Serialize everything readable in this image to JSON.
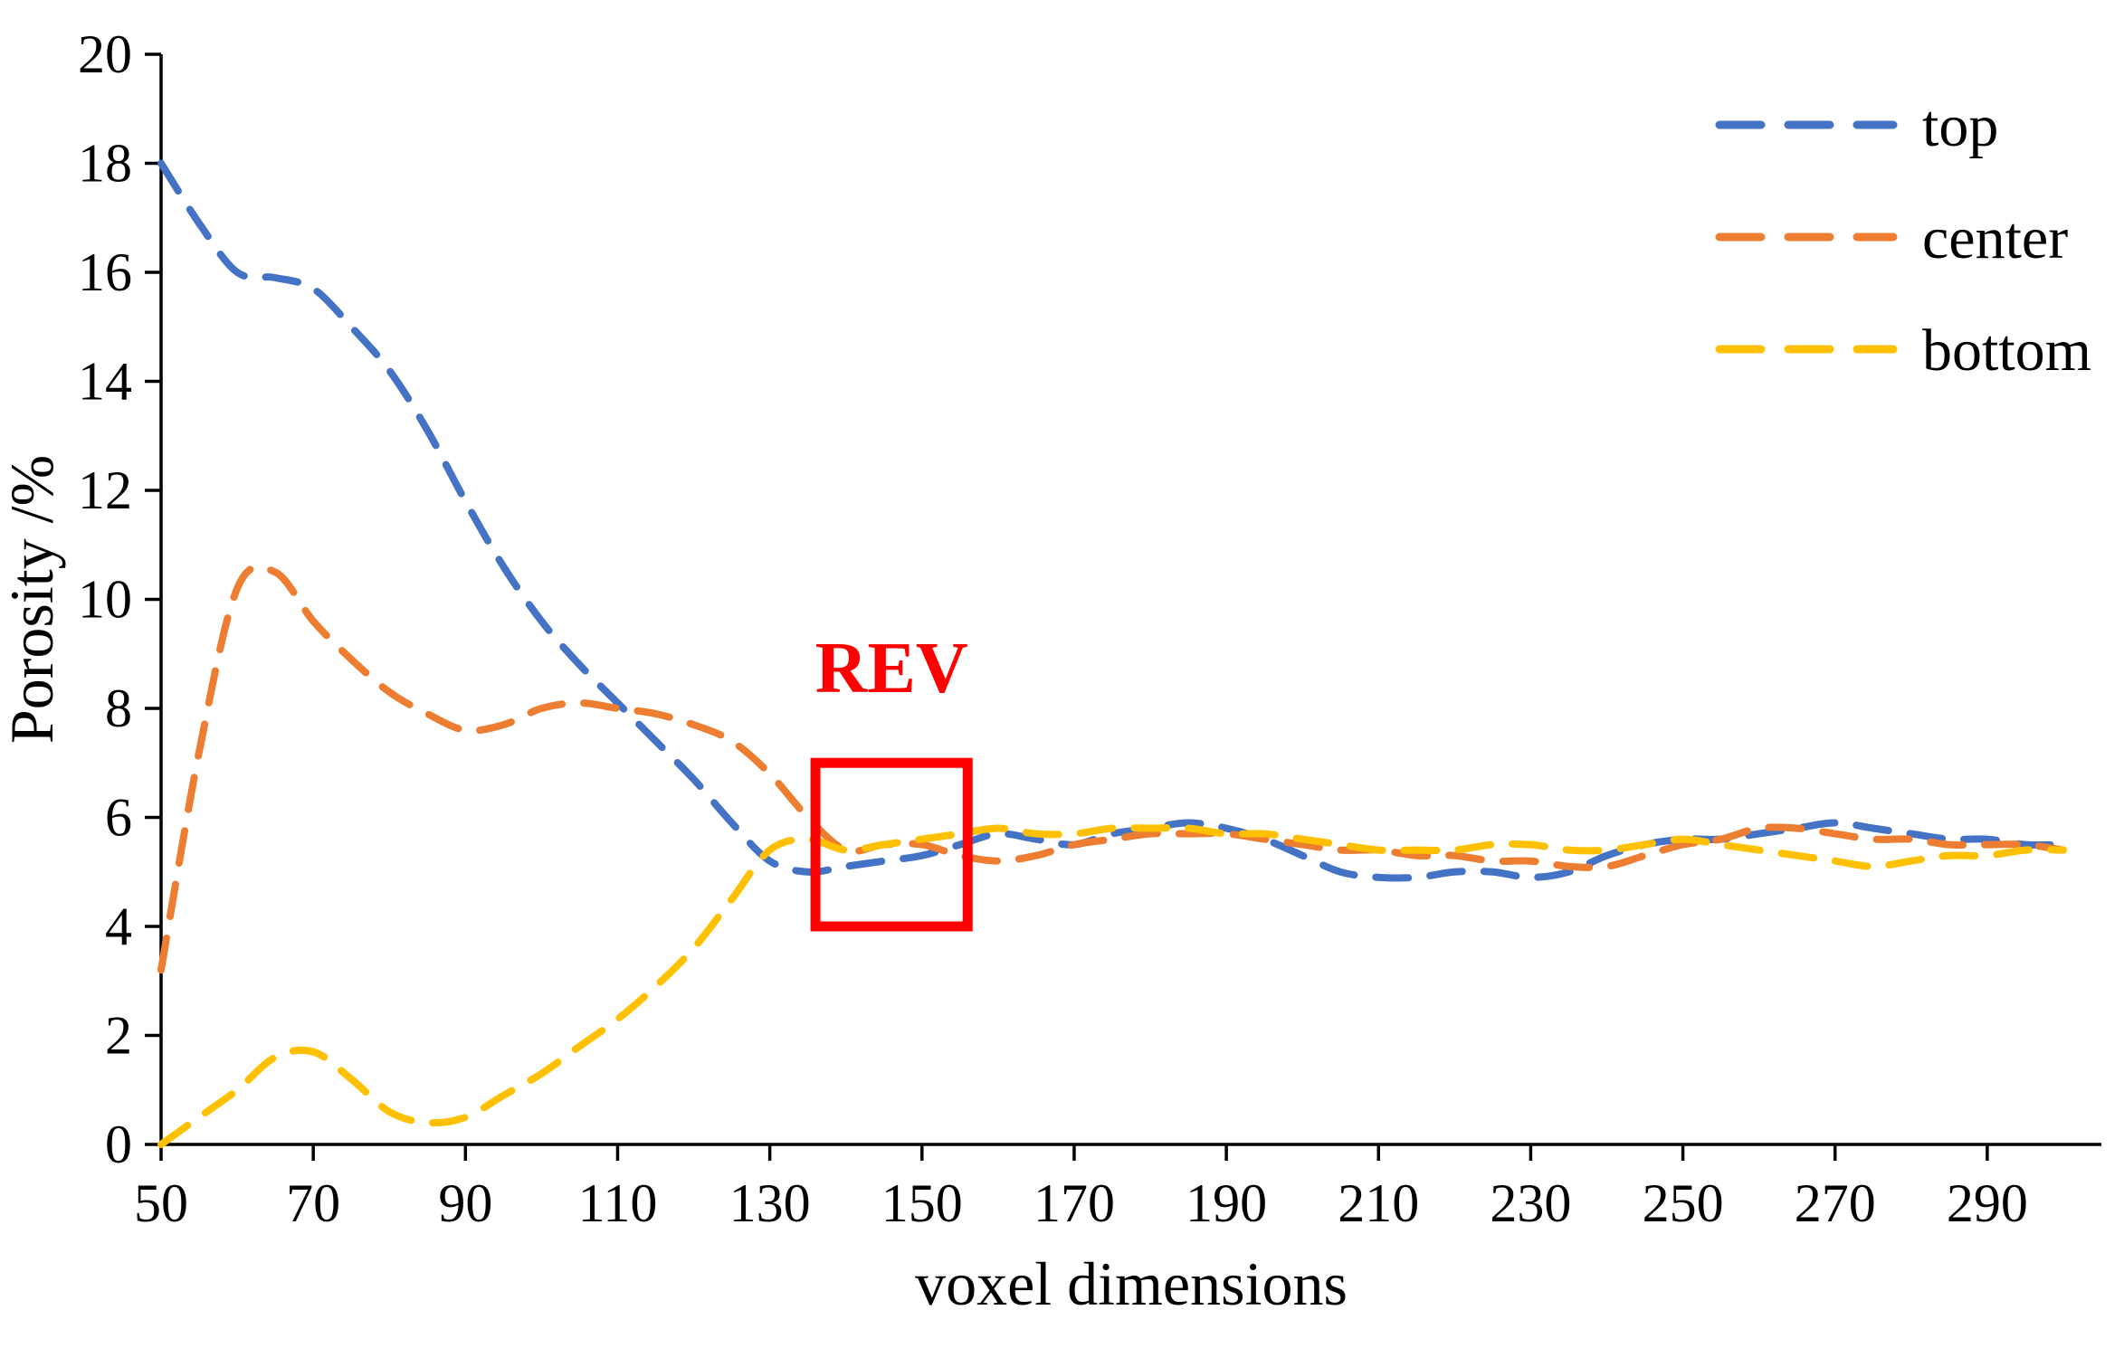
{
  "page": {
    "background": "#ffffff"
  },
  "chart_data": {
    "type": "line",
    "title": "",
    "xlabel": "voxel dimensions",
    "ylabel": "Porosity /%",
    "xlim": [
      50,
      305
    ],
    "ylim": [
      0,
      20
    ],
    "x_ticks": [
      50,
      70,
      90,
      110,
      130,
      150,
      170,
      190,
      210,
      230,
      250,
      270,
      290
    ],
    "y_ticks": [
      0,
      2,
      4,
      6,
      8,
      10,
      12,
      14,
      16,
      18,
      20
    ],
    "grid": false,
    "line_style": "dashed",
    "legend_position": "top-right",
    "axis_color": "#000000",
    "x": [
      50,
      55,
      60,
      65,
      70,
      75,
      80,
      85,
      90,
      95,
      100,
      105,
      110,
      115,
      120,
      125,
      130,
      135,
      140,
      145,
      150,
      155,
      160,
      165,
      170,
      175,
      180,
      185,
      190,
      195,
      200,
      205,
      210,
      215,
      220,
      225,
      230,
      235,
      240,
      245,
      250,
      255,
      260,
      265,
      270,
      275,
      280,
      285,
      290,
      295,
      300
    ],
    "series": [
      {
        "name": "top",
        "color": "#4472C4",
        "values": [
          18.0,
          16.9,
          16.0,
          15.9,
          15.7,
          15.0,
          14.2,
          13.1,
          11.8,
          10.6,
          9.6,
          8.8,
          8.1,
          7.4,
          6.7,
          5.9,
          5.2,
          5.0,
          5.1,
          5.2,
          5.3,
          5.5,
          5.7,
          5.6,
          5.5,
          5.7,
          5.8,
          5.9,
          5.8,
          5.6,
          5.3,
          5.0,
          4.9,
          4.9,
          5.0,
          5.0,
          4.9,
          5.0,
          5.3,
          5.5,
          5.6,
          5.6,
          5.7,
          5.8,
          5.9,
          5.8,
          5.7,
          5.6,
          5.6,
          5.5,
          5.5
        ]
      },
      {
        "name": "center",
        "color": "#ED7D31",
        "values": [
          3.2,
          7.2,
          10.2,
          10.5,
          9.6,
          8.9,
          8.3,
          7.9,
          7.6,
          7.7,
          8.0,
          8.1,
          8.0,
          7.9,
          7.7,
          7.4,
          6.8,
          6.0,
          5.4,
          5.5,
          5.5,
          5.3,
          5.2,
          5.3,
          5.5,
          5.6,
          5.7,
          5.7,
          5.7,
          5.6,
          5.5,
          5.4,
          5.4,
          5.3,
          5.3,
          5.2,
          5.2,
          5.1,
          5.1,
          5.3,
          5.5,
          5.6,
          5.8,
          5.8,
          5.7,
          5.6,
          5.6,
          5.5,
          5.5,
          5.5,
          5.4
        ]
      },
      {
        "name": "bottom",
        "color": "#FFC000",
        "values": [
          0.0,
          0.5,
          1.0,
          1.6,
          1.7,
          1.2,
          0.6,
          0.4,
          0.5,
          0.9,
          1.3,
          1.8,
          2.3,
          2.9,
          3.6,
          4.5,
          5.4,
          5.6,
          5.4,
          5.5,
          5.6,
          5.7,
          5.8,
          5.7,
          5.7,
          5.8,
          5.8,
          5.8,
          5.7,
          5.7,
          5.6,
          5.5,
          5.4,
          5.4,
          5.4,
          5.5,
          5.5,
          5.4,
          5.4,
          5.5,
          5.6,
          5.5,
          5.4,
          5.3,
          5.2,
          5.1,
          5.2,
          5.3,
          5.3,
          5.4,
          5.4
        ]
      }
    ],
    "annotation": {
      "text": "REV",
      "color": "#FF0000",
      "box": {
        "x1": 136,
        "x2": 156,
        "y1": 4.0,
        "y2": 7.0
      },
      "label_x": 146,
      "label_y": 8.3
    }
  }
}
